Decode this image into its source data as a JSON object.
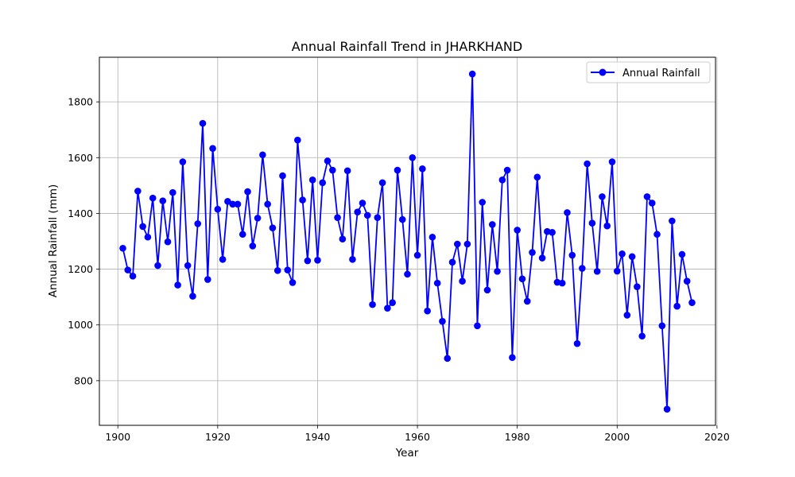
{
  "chart_data": {
    "type": "line",
    "title": "Annual Rainfall Trend in JHARKHAND",
    "xlabel": "Year",
    "ylabel": "Annual Rainfall (mm)",
    "xlim": [
      1896.3,
      2019.7
    ],
    "ylim": [
      640,
      1960
    ],
    "xticks": [
      1900,
      1920,
      1940,
      1960,
      1980,
      2000,
      2020
    ],
    "yticks": [
      800,
      1000,
      1200,
      1400,
      1600,
      1800
    ],
    "grid": true,
    "legend": {
      "placement": "top-right"
    },
    "series": [
      {
        "name": "Annual Rainfall",
        "color": "#0000ff",
        "marker": "circle",
        "x": [
          1901,
          1902,
          1903,
          1904,
          1905,
          1906,
          1907,
          1908,
          1909,
          1910,
          1911,
          1912,
          1913,
          1914,
          1915,
          1916,
          1917,
          1918,
          1919,
          1920,
          1921,
          1922,
          1923,
          1924,
          1925,
          1926,
          1927,
          1928,
          1929,
          1930,
          1931,
          1932,
          1933,
          1934,
          1935,
          1936,
          1937,
          1938,
          1939,
          1940,
          1941,
          1942,
          1943,
          1944,
          1945,
          1946,
          1947,
          1948,
          1949,
          1950,
          1951,
          1952,
          1953,
          1954,
          1955,
          1956,
          1957,
          1958,
          1959,
          1960,
          1961,
          1962,
          1963,
          1964,
          1965,
          1966,
          1967,
          1968,
          1969,
          1970,
          1971,
          1972,
          1973,
          1974,
          1975,
          1976,
          1977,
          1978,
          1979,
          1980,
          1981,
          1982,
          1983,
          1984,
          1985,
          1986,
          1987,
          1988,
          1989,
          1990,
          1991,
          1992,
          1993,
          1994,
          1995,
          1996,
          1997,
          1998,
          1999,
          2000,
          2001,
          2002,
          2003,
          2004,
          2005,
          2006,
          2007,
          2008,
          2009,
          2010,
          2011,
          2012,
          2013,
          2014,
          2015
        ],
        "y": [
          1275,
          1197,
          1175,
          1480,
          1353,
          1315,
          1455,
          1213,
          1445,
          1298,
          1475,
          1143,
          1585,
          1213,
          1103,
          1363,
          1723,
          1163,
          1633,
          1415,
          1235,
          1443,
          1433,
          1433,
          1325,
          1478,
          1283,
          1383,
          1610,
          1433,
          1348,
          1195,
          1535,
          1197,
          1152,
          1663,
          1448,
          1230,
          1520,
          1232,
          1510,
          1588,
          1555,
          1385,
          1308,
          1553,
          1235,
          1405,
          1437,
          1393,
          1073,
          1385,
          1510,
          1060,
          1080,
          1555,
          1378,
          1182,
          1600,
          1250,
          1560,
          1050,
          1315,
          1150,
          1013,
          880,
          1225,
          1290,
          1157,
          1290,
          1900,
          997,
          1440,
          1125,
          1360,
          1192,
          1520,
          1555,
          883,
          1340,
          1165,
          1085,
          1260,
          1530,
          1240,
          1335,
          1332,
          1153,
          1150,
          1403,
          1250,
          933,
          1203,
          1578,
          1365,
          1192,
          1460,
          1355,
          1585,
          1193,
          1255,
          1035,
          1245,
          1137,
          960,
          1460,
          1437,
          1325,
          997,
          698,
          1373,
          1067,
          1253,
          1157,
          1080
        ]
      }
    ]
  }
}
